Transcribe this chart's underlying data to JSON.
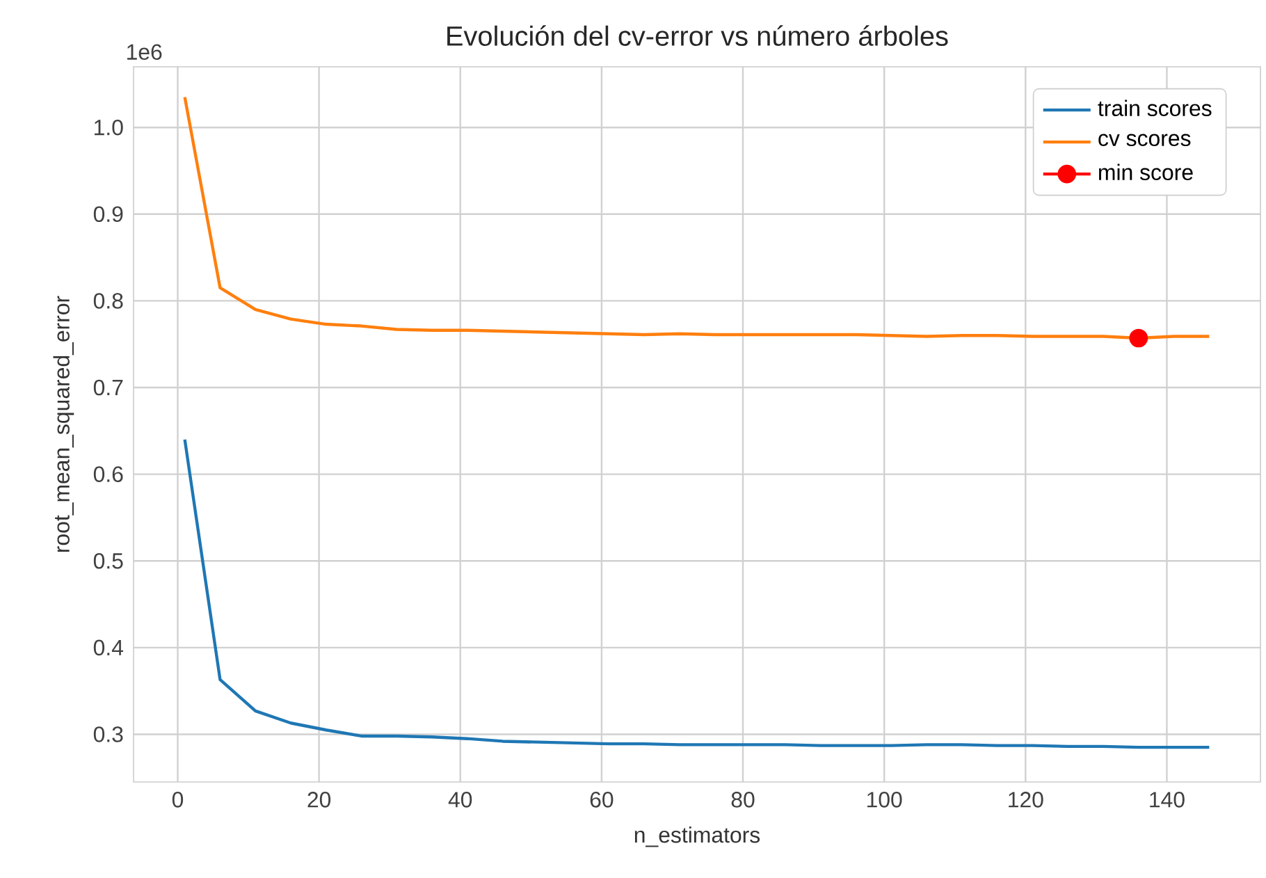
{
  "chart_data": {
    "type": "line",
    "title": "Evolución del cv-error vs número árboles",
    "xlabel": "n_estimators",
    "ylabel": "root_mean_squared_error",
    "annotations": [
      "1e6"
    ],
    "series": [
      {
        "name": "train scores",
        "color": "#1f77b4",
        "x": [
          1,
          6,
          11,
          16,
          21,
          26,
          31,
          36,
          41,
          46,
          51,
          56,
          61,
          66,
          71,
          76,
          81,
          86,
          91,
          96,
          101,
          106,
          111,
          116,
          121,
          126,
          131,
          136,
          141,
          146
        ],
        "values": [
          0.64,
          0.363,
          0.327,
          0.313,
          0.305,
          0.298,
          0.298,
          0.297,
          0.295,
          0.292,
          0.291,
          0.29,
          0.289,
          0.289,
          0.288,
          0.288,
          0.288,
          0.288,
          0.287,
          0.287,
          0.287,
          0.288,
          0.288,
          0.287,
          0.287,
          0.286,
          0.286,
          0.285,
          0.285,
          0.285
        ]
      },
      {
        "name": "cv scores",
        "color": "#ff7f0e",
        "x": [
          1,
          6,
          11,
          16,
          21,
          26,
          31,
          36,
          41,
          46,
          51,
          56,
          61,
          66,
          71,
          76,
          81,
          86,
          91,
          96,
          101,
          106,
          111,
          116,
          121,
          126,
          131,
          136,
          141,
          146
        ],
        "values": [
          1.035,
          0.815,
          0.79,
          0.779,
          0.773,
          0.771,
          0.767,
          0.766,
          0.766,
          0.765,
          0.764,
          0.763,
          0.762,
          0.761,
          0.762,
          0.761,
          0.761,
          0.761,
          0.761,
          0.761,
          0.76,
          0.759,
          0.76,
          0.76,
          0.759,
          0.759,
          0.759,
          0.757,
          0.759,
          0.759
        ]
      },
      {
        "name": "min score",
        "color": "#ff0000",
        "marker": "circle",
        "x": [
          136
        ],
        "values": [
          0.757
        ]
      }
    ],
    "xlim": [
      -6.25,
      153.25
    ],
    "ylim": [
      0.245,
      1.07
    ],
    "xticks": [
      0,
      20,
      40,
      60,
      80,
      100,
      120,
      140
    ],
    "yticks": [
      0.3,
      0.4,
      0.5,
      0.6,
      0.7,
      0.8,
      0.9,
      {
        "value": 1.0,
        "label": "1.0"
      }
    ],
    "grid": true,
    "legend": "top right"
  }
}
